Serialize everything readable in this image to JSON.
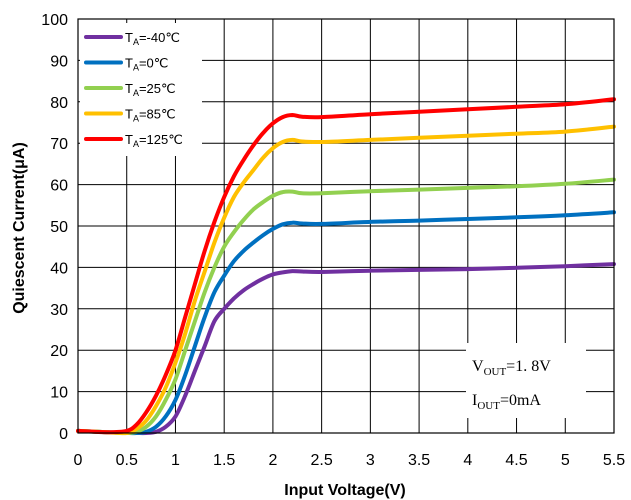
{
  "chart_data": {
    "type": "line",
    "title": "",
    "xlabel": "Input Voltage(V)",
    "ylabel": "Quiescent Current(μA)",
    "xlim": [
      0,
      5.5
    ],
    "ylim": [
      0,
      100
    ],
    "xticks": [
      "0",
      "0.5",
      "1",
      "1.5",
      "2",
      "2.5",
      "3",
      "3.5",
      "4",
      "4.5",
      "5",
      "5.5"
    ],
    "yticks": [
      "0",
      "10",
      "20",
      "30",
      "40",
      "50",
      "60",
      "70",
      "80",
      "90",
      "100"
    ],
    "grid": true,
    "legend_position": "top-left",
    "series": [
      {
        "name": "TA=-40℃",
        "label_main": "T",
        "label_sub": "A",
        "label_rest": "=-40℃",
        "color": "#7030A0",
        "x": [
          0,
          0.3,
          0.5,
          0.6,
          0.7,
          0.8,
          0.9,
          1.0,
          1.1,
          1.2,
          1.3,
          1.4,
          1.5,
          1.6,
          1.7,
          1.8,
          1.9,
          2.0,
          2.1,
          2.2,
          2.3,
          2.5,
          3.0,
          3.5,
          4.0,
          4.5,
          5.0,
          5.5
        ],
        "y": [
          0.5,
          0.2,
          0,
          0,
          0,
          0.3,
          1.5,
          4,
          9,
          15,
          21,
          27,
          30,
          32.5,
          34.5,
          36,
          37.3,
          38.3,
          38.8,
          39.1,
          39,
          38.9,
          39.2,
          39.4,
          39.6,
          39.9,
          40.3,
          40.8
        ]
      },
      {
        "name": "TA=0℃",
        "label_main": "T",
        "label_sub": "A",
        "label_rest": "=0℃",
        "color": "#0070C0",
        "x": [
          0,
          0.3,
          0.5,
          0.6,
          0.7,
          0.8,
          0.9,
          1.0,
          1.1,
          1.2,
          1.3,
          1.4,
          1.5,
          1.6,
          1.7,
          1.8,
          1.9,
          2.0,
          2.1,
          2.2,
          2.3,
          2.5,
          3.0,
          3.5,
          4.0,
          4.5,
          5.0,
          5.5
        ],
        "y": [
          0.5,
          0.2,
          0,
          0,
          0.3,
          1.5,
          4,
          8,
          14,
          21,
          28,
          34,
          38,
          41.5,
          44,
          46,
          47.8,
          49.3,
          50.4,
          50.8,
          50.6,
          50.5,
          51,
          51.3,
          51.7,
          52.1,
          52.6,
          53.3
        ]
      },
      {
        "name": "TA=25℃",
        "label_main": "T",
        "label_sub": "A",
        "label_rest": "=25℃",
        "color": "#92D050",
        "x": [
          0,
          0.3,
          0.5,
          0.6,
          0.7,
          0.8,
          0.9,
          1.0,
          1.1,
          1.2,
          1.3,
          1.4,
          1.5,
          1.6,
          1.7,
          1.8,
          1.9,
          2.0,
          2.1,
          2.2,
          2.3,
          2.5,
          3.0,
          3.5,
          4.0,
          4.5,
          5.0,
          5.5
        ],
        "y": [
          0.5,
          0.2,
          0,
          0.3,
          1.5,
          4,
          8,
          13,
          20,
          27,
          34,
          40,
          45,
          48.5,
          51.5,
          54,
          55.8,
          57.3,
          58.2,
          58.3,
          57.9,
          57.9,
          58.4,
          58.8,
          59.2,
          59.6,
          60.2,
          61.2
        ]
      },
      {
        "name": "TA=85℃",
        "label_main": "T",
        "label_sub": "A",
        "label_rest": "=85℃",
        "color": "#FFC000",
        "x": [
          0,
          0.3,
          0.5,
          0.6,
          0.7,
          0.8,
          0.9,
          1.0,
          1.1,
          1.2,
          1.3,
          1.4,
          1.5,
          1.6,
          1.7,
          1.8,
          1.9,
          2.0,
          2.1,
          2.2,
          2.3,
          2.5,
          3.0,
          3.5,
          4.0,
          4.5,
          5.0,
          5.5
        ],
        "y": [
          0.5,
          0.2,
          0,
          1,
          3,
          6.5,
          11,
          17,
          24,
          32,
          39,
          46,
          52,
          57,
          60.5,
          63.5,
          66.5,
          68.8,
          70.3,
          70.8,
          70.4,
          70.3,
          70.8,
          71.3,
          71.8,
          72.3,
          72.8,
          74
        ]
      },
      {
        "name": "TA=125℃",
        "label_main": "T",
        "label_sub": "A",
        "label_rest": "=125℃",
        "color": "#FF0000",
        "x": [
          0,
          0.3,
          0.5,
          0.6,
          0.7,
          0.8,
          0.9,
          1.0,
          1.1,
          1.2,
          1.3,
          1.4,
          1.5,
          1.6,
          1.7,
          1.8,
          1.9,
          2.0,
          2.1,
          2.2,
          2.3,
          2.5,
          3.0,
          3.5,
          4.0,
          4.5,
          5.0,
          5.5
        ],
        "y": [
          0.5,
          0.2,
          0.5,
          2,
          5,
          9,
          14,
          20,
          28,
          36,
          44,
          51,
          57,
          62,
          66,
          69.5,
          72.5,
          74.8,
          76.3,
          76.8,
          76.4,
          76.3,
          77,
          77.6,
          78.2,
          78.8,
          79.4,
          80.6
        ]
      }
    ],
    "annotation": {
      "line1_main": "V",
      "line1_sub": "OUT",
      "line1_rest": "=1. 8V",
      "line2_main": "I",
      "line2_sub": "OUT",
      "line2_rest": "=0mA"
    }
  }
}
